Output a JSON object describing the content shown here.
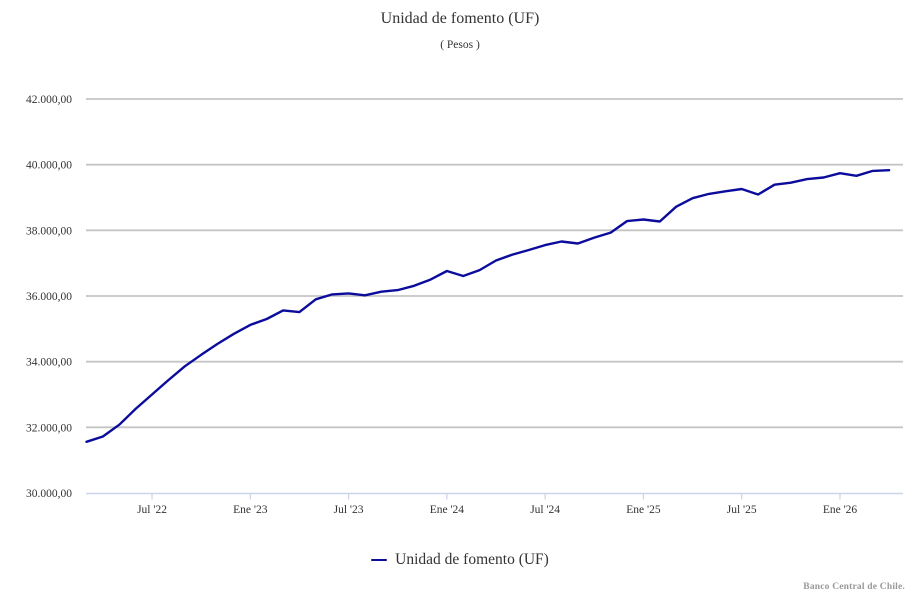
{
  "header": {
    "title": "Unidad de fomento (UF)",
    "subtitle": "( Pesos )"
  },
  "legend": {
    "items": [
      {
        "label": "Unidad de fomento (UF)",
        "color": "#0c0c9c"
      }
    ]
  },
  "footer": {
    "credit": "Banco Central de Chile."
  },
  "colors": {
    "series": "#0c0c9c",
    "gridline": "#c5c5c5",
    "axis_line": "#ccd6eb",
    "text": "#333333",
    "credit": "#999999"
  },
  "chart_data": {
    "type": "line",
    "title": "Unidad de fomento (UF)",
    "subtitle": "( Pesos )",
    "ylabel": "Pesos",
    "xlabel": "",
    "grid": "horizontal-only",
    "legend_position": "bottom-center",
    "ylim": [
      30000,
      42000
    ],
    "y_tick_values": [
      42000,
      40000,
      38000,
      36000,
      34000,
      32000,
      30000
    ],
    "y_tick_labels": [
      "42.000,00",
      "40.000,00",
      "38.000,00",
      "36.000,00",
      "34.000,00",
      "32.000,00",
      "30.000,00"
    ],
    "x_tick_indices": [
      4,
      10,
      16,
      22,
      28,
      34,
      40,
      46
    ],
    "x_tick_labels": [
      "Jul '22",
      "Ene '23",
      "Jul '23",
      "Ene '24",
      "Jul '24",
      "Ene '25",
      "Jul '25",
      "Ene '26"
    ],
    "x": [
      "Mar '22",
      "Abr '22",
      "May '22",
      "Jun '22",
      "Jul '22",
      "Ago '22",
      "Sep '22",
      "Oct '22",
      "Nov '22",
      "Dic '22",
      "Ene '23",
      "Feb '23",
      "Mar '23",
      "Abr '23",
      "May '23",
      "Jun '23",
      "Jul '23",
      "Ago '23",
      "Sep '23",
      "Oct '23",
      "Nov '23",
      "Dic '23",
      "Ene '24",
      "Feb '24",
      "Mar '24",
      "Abr '24",
      "May '24",
      "Jun '24",
      "Jul '24",
      "Ago '24",
      "Sep '24",
      "Oct '24",
      "Nov '24",
      "Dic '24",
      "Ene '25",
      "Feb '25",
      "Mar '25",
      "Abr '25",
      "May '25",
      "Jun '25",
      "Jul '25",
      "Ago '25",
      "Sep '25",
      "Oct '25",
      "Nov '25",
      "Dic '25",
      "Ene '26",
      "Feb '26",
      "Mar '26",
      "Abr '26"
    ],
    "series": [
      {
        "name": "Unidad de fomento (UF)",
        "values": [
          31560,
          31720,
          32080,
          32560,
          33000,
          33440,
          33860,
          34210,
          34540,
          34850,
          35120,
          35300,
          35560,
          35510,
          35900,
          36050,
          36080,
          36020,
          36130,
          36180,
          36310,
          36500,
          36760,
          36610,
          36790,
          37080,
          37260,
          37400,
          37550,
          37660,
          37600,
          37780,
          37930,
          38280,
          38330,
          38270,
          38720,
          38980,
          39110,
          39190,
          39260,
          39090,
          39390,
          39450,
          39560,
          39610,
          39740,
          39660,
          39810,
          39830
        ]
      }
    ]
  }
}
